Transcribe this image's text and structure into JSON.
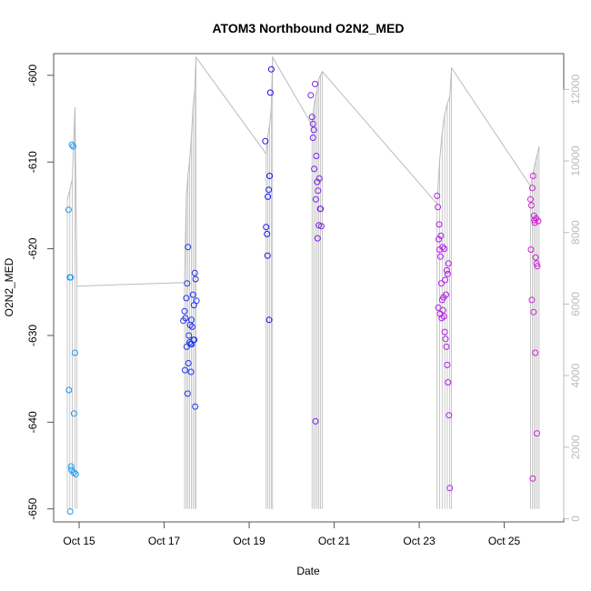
{
  "chart_data": {
    "type": "scatter",
    "title": "ATOM3 Northbound O2N2_MED",
    "xlabel": "Date",
    "ylabel": "O2N2_MED",
    "x_ticks": [
      "Oct 15",
      "Oct 17",
      "Oct 19",
      "Oct 21",
      "Oct 23",
      "Oct 25"
    ],
    "x_tick_values": [
      15,
      17,
      19,
      21,
      23,
      25
    ],
    "xlim": [
      14.4,
      26.4
    ],
    "ylim": [
      -651.5,
      -597.5
    ],
    "y_ticks": [
      -650,
      -640,
      -630,
      -620,
      -610,
      -600
    ],
    "y2lim": [
      -90,
      13000
    ],
    "y2_ticks": [
      0,
      2000,
      4000,
      6000,
      8000,
      10000,
      12000
    ],
    "grid": false,
    "colors": {
      "frame": "#555555",
      "secondary_axis": "#bbbbbb",
      "line": "#bbbbbb"
    },
    "series": [
      {
        "color": "#1e9af0",
        "x": [
          14.75,
          14.78,
          14.8,
          14.83,
          14.86,
          14.88,
          14.9,
          14.76,
          14.81,
          14.92,
          14.87,
          14.79,
          14.82
        ],
        "y": [
          -615.5,
          -623.3,
          -623.3,
          -608.0,
          -608.2,
          -639.0,
          -632.0,
          -636.3,
          -645.1,
          -646.0,
          -645.8,
          -650.3,
          -645.5
        ]
      },
      {
        "color": "#2034e8",
        "x": [
          17.45,
          17.48,
          17.5,
          17.52,
          17.54,
          17.56,
          17.58,
          17.6,
          17.62,
          17.64,
          17.66,
          17.68,
          17.7,
          17.72,
          17.74,
          17.76,
          17.53,
          17.57,
          17.61,
          17.65,
          17.69,
          17.73,
          17.49,
          17.55,
          17.63,
          17.71
        ],
        "y": [
          -628.3,
          -627.2,
          -628.0,
          -625.7,
          -624.0,
          -619.8,
          -630.0,
          -630.8,
          -631.0,
          -628.2,
          -629.0,
          -625.3,
          -626.5,
          -622.8,
          -623.5,
          -626.0,
          -631.3,
          -633.2,
          -628.8,
          -631.0,
          -630.5,
          -638.2,
          -634.0,
          -636.7,
          -634.2,
          -630.5
        ]
      },
      {
        "color": "#1c14f0",
        "x": [
          19.38,
          19.4,
          19.42,
          19.44,
          19.46,
          19.48,
          19.5,
          19.52,
          19.43,
          19.47
        ],
        "y": [
          -607.6,
          -617.5,
          -618.3,
          -614.0,
          -613.2,
          -611.6,
          -602.0,
          -599.3,
          -620.8,
          -628.2
        ]
      },
      {
        "color": "#7a1ff0",
        "x": [
          20.45,
          20.48,
          20.5,
          20.52,
          20.55,
          20.58,
          20.6,
          20.62,
          20.65,
          20.68,
          20.7,
          20.5,
          20.53,
          20.57,
          20.61,
          20.64,
          20.67,
          20.56
        ],
        "y": [
          -602.3,
          -604.8,
          -605.6,
          -606.3,
          -601.0,
          -609.3,
          -612.3,
          -613.3,
          -611.9,
          -615.4,
          -617.4,
          -607.2,
          -610.8,
          -614.3,
          -618.8,
          -617.3,
          -615.4,
          -639.9
        ]
      },
      {
        "color": "#b41ce8",
        "x": [
          23.42,
          23.44,
          23.46,
          23.48,
          23.5,
          23.52,
          23.54,
          23.56,
          23.58,
          23.6,
          23.62,
          23.64,
          23.66,
          23.68,
          23.7,
          23.72,
          23.45,
          23.49,
          23.53,
          23.57,
          23.61,
          23.65,
          23.69,
          23.47,
          23.51,
          23.55,
          23.59,
          23.63,
          23.67
        ],
        "y": [
          -613.9,
          -615.2,
          -618.9,
          -620.1,
          -620.9,
          -624.0,
          -625.9,
          -627.1,
          -627.8,
          -629.6,
          -630.4,
          -631.3,
          -633.4,
          -635.4,
          -639.2,
          -647.6,
          -626.8,
          -627.5,
          -628.0,
          -625.6,
          -623.6,
          -622.5,
          -621.7,
          -617.2,
          -618.5,
          -619.8,
          -620.0,
          -625.3,
          -622.9
        ]
      },
      {
        "color": "#d21ed8",
        "x": [
          25.62,
          25.64,
          25.66,
          25.68,
          25.7,
          25.72,
          25.74,
          25.76,
          25.78,
          25.8,
          25.65,
          25.69,
          25.73,
          25.77,
          25.67,
          25.71,
          25.75,
          25.63
        ],
        "y": [
          -614.3,
          -615.0,
          -613.0,
          -611.6,
          -616.2,
          -617.0,
          -621.0,
          -621.7,
          -622.0,
          -616.8,
          -625.9,
          -627.3,
          -632.0,
          -641.3,
          -646.5,
          -616.7,
          -616.5,
          -620.1
        ]
      }
    ],
    "line_series": {
      "color": "#bbbbbb",
      "x": [
        14.72,
        14.78,
        14.84,
        14.9,
        14.95,
        17.48,
        17.52,
        17.56,
        17.6,
        17.64,
        17.68,
        17.72,
        17.75,
        19.4,
        19.44,
        19.48,
        19.52,
        19.55,
        20.48,
        20.52,
        20.56,
        20.6,
        20.64,
        20.68,
        20.72,
        23.42,
        23.48,
        23.54,
        23.6,
        23.66,
        23.72,
        23.76,
        25.62,
        25.66,
        25.7,
        25.74,
        25.78,
        25.82
      ],
      "y": [
        8900,
        9200,
        9500,
        11500,
        6500,
        6600,
        9000,
        9600,
        10000,
        10700,
        11500,
        12000,
        12900,
        10200,
        10700,
        11000,
        11500,
        12900,
        11000,
        11500,
        11800,
        12000,
        12300,
        12400,
        12500,
        8800,
        10000,
        10800,
        11300,
        11600,
        11800,
        12600,
        9300,
        9500,
        9800,
        10000,
        10200,
        10400
      ]
    }
  }
}
